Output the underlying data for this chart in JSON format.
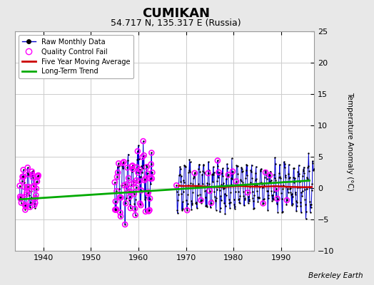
{
  "title": "CUMIKAN",
  "subtitle": "54.717 N, 135.317 E (Russia)",
  "ylabel": "Temperature Anomaly (°C)",
  "credit": "Berkeley Earth",
  "xlim": [
    1934,
    1997
  ],
  "ylim": [
    -10,
    25
  ],
  "yticks": [
    -10,
    -5,
    0,
    5,
    10,
    15,
    20,
    25
  ],
  "xticks": [
    1940,
    1950,
    1960,
    1970,
    1980,
    1990
  ],
  "plot_bg": "#ffffff",
  "fig_bg": "#e8e8e8",
  "raw_color": "#0000cc",
  "qc_color": "#ff00ff",
  "moving_avg_color": "#cc0000",
  "trend_color": "#00aa00",
  "grid_color": "#cccccc",
  "trend_line": [
    [
      1935,
      -1.8
    ],
    [
      1996,
      1.2
    ]
  ]
}
